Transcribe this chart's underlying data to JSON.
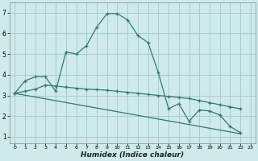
{
  "xlabel": "Humidex (Indice chaleur)",
  "background_color": "#ceeaea",
  "grid_color": "#aacccc",
  "line_color": "#2e7b6e",
  "xlim": [
    -0.5,
    23.5
  ],
  "ylim": [
    0.7,
    7.5
  ],
  "xticks": [
    0,
    1,
    2,
    3,
    4,
    5,
    6,
    7,
    8,
    9,
    10,
    11,
    12,
    13,
    14,
    15,
    16,
    17,
    18,
    19,
    20,
    21,
    22,
    23
  ],
  "yticks": [
    1,
    2,
    3,
    4,
    5,
    6,
    7
  ],
  "series1_x": [
    0,
    1,
    2,
    3,
    4,
    5,
    6,
    7,
    8,
    9,
    10,
    11,
    12,
    13,
    14,
    15,
    16,
    17,
    18,
    19,
    20,
    21,
    22
  ],
  "series1_y": [
    3.1,
    3.7,
    3.9,
    3.9,
    3.2,
    5.1,
    5.0,
    5.4,
    6.3,
    6.95,
    6.95,
    6.65,
    5.9,
    5.55,
    4.1,
    2.35,
    2.6,
    1.75,
    2.3,
    2.25,
    2.05,
    1.5,
    1.2
  ],
  "series2_x": [
    0,
    1,
    2,
    3,
    4,
    5,
    6,
    7,
    8,
    9,
    10,
    11,
    12,
    13,
    14,
    15,
    16,
    17,
    18,
    19,
    20,
    21,
    22
  ],
  "series2_y": [
    3.1,
    3.2,
    3.3,
    3.5,
    3.45,
    3.4,
    3.35,
    3.3,
    3.28,
    3.25,
    3.2,
    3.15,
    3.1,
    3.05,
    3.0,
    2.95,
    2.9,
    2.85,
    2.75,
    2.65,
    2.55,
    2.45,
    2.35
  ],
  "series3_x": [
    0,
    22
  ],
  "series3_y": [
    3.1,
    1.15
  ]
}
